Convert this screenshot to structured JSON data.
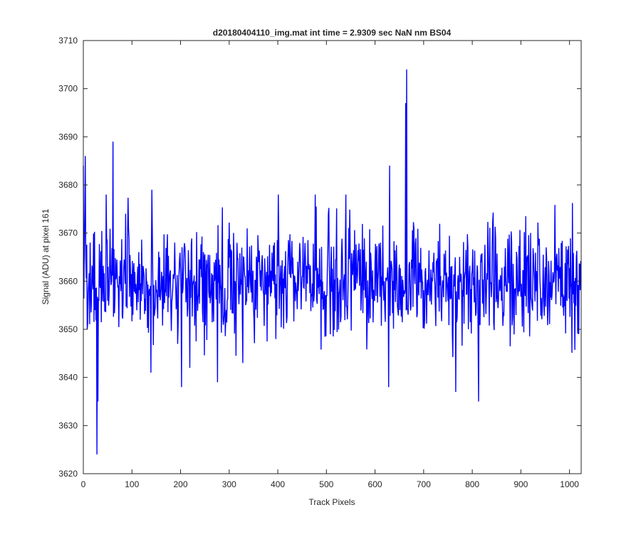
{
  "chart_data": {
    "type": "line",
    "title": "d20180404110_img.mat int time = 2.9309 sec  NaN nm BS04",
    "xlabel": "Track Pixels",
    "ylabel": "Signal (ADU) at pixel 161",
    "xlim": [
      0,
      1024
    ],
    "ylim": [
      3620,
      3710
    ],
    "xticks": [
      0,
      100,
      200,
      300,
      400,
      500,
      600,
      700,
      800,
      900,
      1000
    ],
    "yticks": [
      3620,
      3630,
      3640,
      3650,
      3660,
      3670,
      3680,
      3690,
      3700,
      3710
    ],
    "grid": false,
    "legend": "none",
    "series": [
      {
        "color": "#0000ff",
        "baseline": 3660,
        "noise_sd": 6,
        "n_points": 1024,
        "seed": 20180404,
        "notable_points": [
          {
            "x": 0,
            "y": 3684
          },
          {
            "x": 4,
            "y": 3686
          },
          {
            "x": 8,
            "y": 3650
          },
          {
            "x": 28,
            "y": 3624
          },
          {
            "x": 30,
            "y": 3635
          },
          {
            "x": 61,
            "y": 3689
          },
          {
            "x": 139,
            "y": 3641
          },
          {
            "x": 141,
            "y": 3679
          },
          {
            "x": 202,
            "y": 3638
          },
          {
            "x": 219,
            "y": 3642
          },
          {
            "x": 276,
            "y": 3639
          },
          {
            "x": 628,
            "y": 3638
          },
          {
            "x": 630,
            "y": 3684
          },
          {
            "x": 663,
            "y": 3697
          },
          {
            "x": 665,
            "y": 3704
          },
          {
            "x": 766,
            "y": 3637
          },
          {
            "x": 813,
            "y": 3635
          },
          {
            "x": 1019,
            "y": 3649
          }
        ]
      }
    ]
  }
}
